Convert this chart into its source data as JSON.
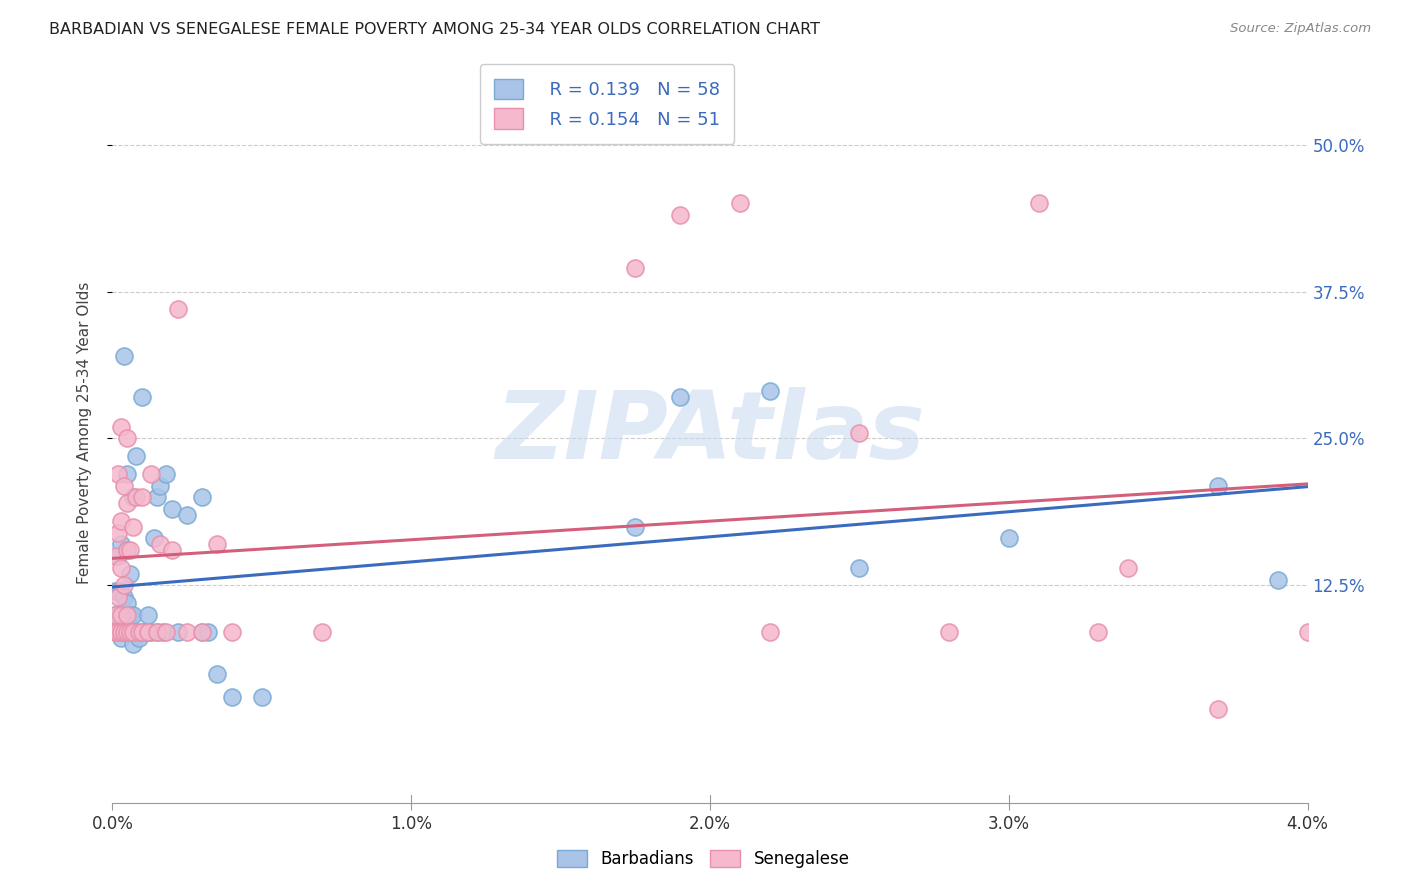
{
  "title": "BARBADIAN VS SENEGALESE FEMALE POVERTY AMONG 25-34 YEAR OLDS CORRELATION CHART",
  "source": "Source: ZipAtlas.com",
  "ylabel": "Female Poverty Among 25-34 Year Olds",
  "xlim": [
    0.0,
    0.04
  ],
  "ylim": [
    -0.06,
    0.57
  ],
  "xticks": [
    0.0,
    0.01,
    0.02,
    0.03,
    0.04
  ],
  "xticklabels": [
    "0.0%",
    "1.0%",
    "2.0%",
    "3.0%",
    "4.0%"
  ],
  "ytick_positions": [
    0.125,
    0.25,
    0.375,
    0.5
  ],
  "ytick_labels": [
    "12.5%",
    "25.0%",
    "37.5%",
    "50.0%"
  ],
  "barbadian_color": "#aac4e8",
  "barbadian_edge": "#7aaad4",
  "senegalese_color": "#f5b8cc",
  "senegalese_edge": "#e890ab",
  "barbadian_line_color": "#3b6bbf",
  "senegalese_line_color": "#d45f7a",
  "legend_R_barbadian": "R = 0.139",
  "legend_N_barbadian": "N = 58",
  "legend_R_senegalese": "R = 0.154",
  "legend_N_senegalese": "N = 51",
  "watermark": "ZIPAtlas",
  "barbadian_x": [
    0.0001,
    0.0001,
    0.0002,
    0.0002,
    0.0002,
    0.0002,
    0.0003,
    0.0003,
    0.0003,
    0.0003,
    0.0003,
    0.0003,
    0.0004,
    0.0004,
    0.0004,
    0.0004,
    0.0005,
    0.0005,
    0.0005,
    0.0005,
    0.0005,
    0.0006,
    0.0006,
    0.0006,
    0.0007,
    0.0007,
    0.0007,
    0.0007,
    0.0008,
    0.0008,
    0.0009,
    0.001,
    0.001,
    0.0012,
    0.0012,
    0.0013,
    0.0014,
    0.0015,
    0.0015,
    0.0016,
    0.0017,
    0.0018,
    0.002,
    0.0022,
    0.0025,
    0.003,
    0.003,
    0.0032,
    0.0035,
    0.004,
    0.005,
    0.0175,
    0.019,
    0.022,
    0.025,
    0.03,
    0.037,
    0.039
  ],
  "barbadian_y": [
    0.12,
    0.1,
    0.1,
    0.12,
    0.085,
    0.15,
    0.08,
    0.085,
    0.09,
    0.1,
    0.12,
    0.16,
    0.085,
    0.09,
    0.115,
    0.32,
    0.085,
    0.09,
    0.11,
    0.155,
    0.22,
    0.085,
    0.1,
    0.135,
    0.075,
    0.085,
    0.1,
    0.2,
    0.085,
    0.235,
    0.08,
    0.085,
    0.285,
    0.085,
    0.1,
    0.085,
    0.165,
    0.085,
    0.2,
    0.21,
    0.085,
    0.22,
    0.19,
    0.085,
    0.185,
    0.085,
    0.2,
    0.085,
    0.05,
    0.03,
    0.03,
    0.175,
    0.285,
    0.29,
    0.14,
    0.165,
    0.21,
    0.13
  ],
  "senegalese_x": [
    0.0001,
    0.0001,
    0.0001,
    0.0002,
    0.0002,
    0.0002,
    0.0002,
    0.0003,
    0.0003,
    0.0003,
    0.0003,
    0.0003,
    0.0004,
    0.0004,
    0.0004,
    0.0005,
    0.0005,
    0.0005,
    0.0005,
    0.0005,
    0.0006,
    0.0006,
    0.0007,
    0.0007,
    0.0008,
    0.0009,
    0.001,
    0.001,
    0.0012,
    0.0013,
    0.0015,
    0.0016,
    0.0018,
    0.002,
    0.0022,
    0.0025,
    0.003,
    0.0035,
    0.004,
    0.007,
    0.0175,
    0.019,
    0.022,
    0.025,
    0.028,
    0.033,
    0.037,
    0.04,
    0.021,
    0.031,
    0.034
  ],
  "senegalese_y": [
    0.085,
    0.1,
    0.15,
    0.085,
    0.115,
    0.17,
    0.22,
    0.085,
    0.1,
    0.14,
    0.18,
    0.26,
    0.085,
    0.125,
    0.21,
    0.085,
    0.1,
    0.155,
    0.195,
    0.25,
    0.085,
    0.155,
    0.085,
    0.175,
    0.2,
    0.085,
    0.085,
    0.2,
    0.085,
    0.22,
    0.085,
    0.16,
    0.085,
    0.155,
    0.36,
    0.085,
    0.085,
    0.16,
    0.085,
    0.085,
    0.395,
    0.44,
    0.085,
    0.255,
    0.085,
    0.085,
    0.02,
    0.085,
    0.45,
    0.45,
    0.14
  ]
}
